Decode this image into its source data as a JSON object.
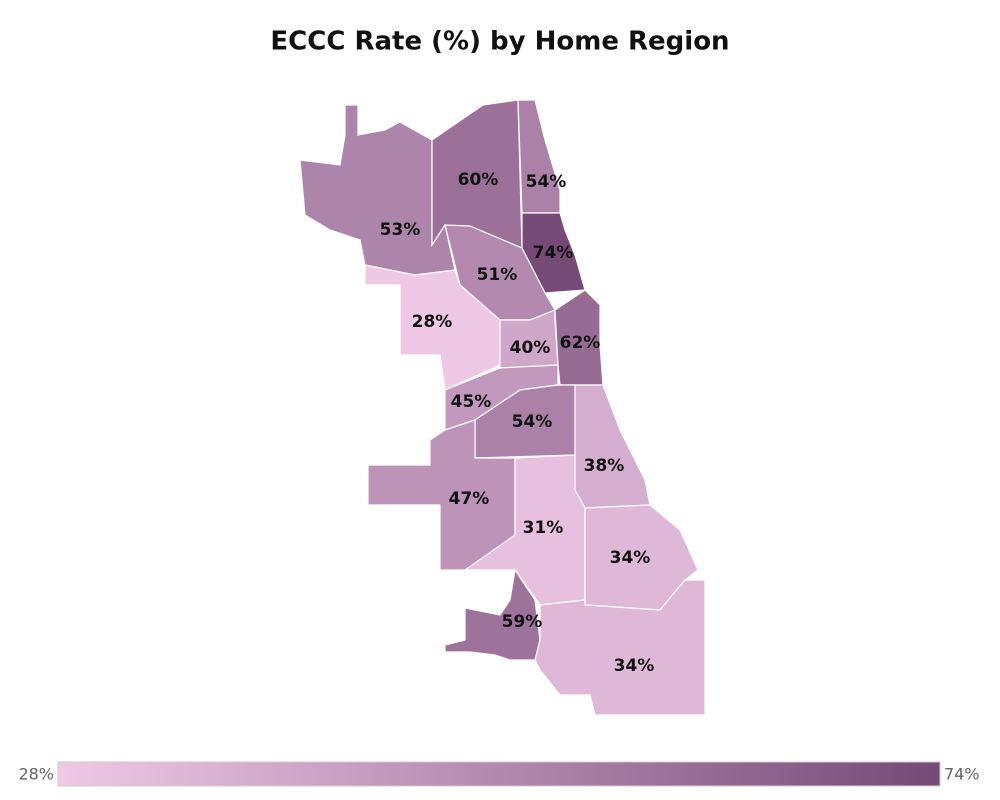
{
  "chart_data": {
    "type": "choropleth",
    "title": "ECCC Rate (%) by Home Region",
    "values": [
      53,
      60,
      54,
      74,
      51,
      28,
      40,
      62,
      45,
      54,
      38,
      47,
      31,
      34,
      59,
      34
    ],
    "value_labels": [
      "53%",
      "60%",
      "54%",
      "74%",
      "51%",
      "28%",
      "40%",
      "62%",
      "45%",
      "54%",
      "38%",
      "47%",
      "31%",
      "34%",
      "59%",
      "34%"
    ],
    "colorscale": [
      "#efc8e6",
      "#764a77"
    ],
    "clim": [
      28,
      74
    ],
    "cticks": [
      {
        "value": 28,
        "label": "28%"
      },
      {
        "value": 74,
        "label": "74%"
      }
    ]
  }
}
